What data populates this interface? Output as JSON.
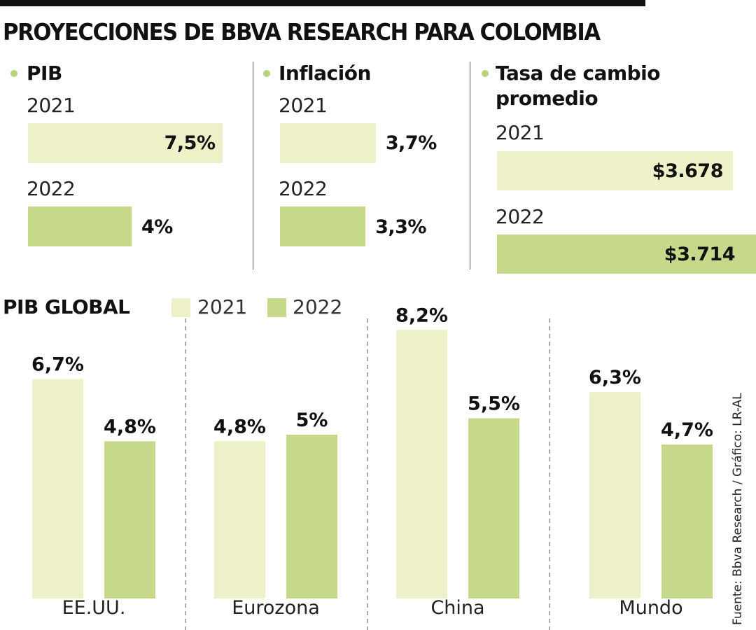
{
  "title": "PROYECCIONES DE BBVA RESEARCH PARA COLOMBIA",
  "colors": {
    "year_2021": "#eef1c8",
    "year_2022": "#c6d98a",
    "bullet": "#b8d27e"
  },
  "colombia": {
    "pib": {
      "title": "PIB",
      "items": [
        {
          "year": "2021",
          "label": "7,5%",
          "value": 7.5
        },
        {
          "year": "2022",
          "label": "4%",
          "value": 4
        }
      ]
    },
    "inflacion": {
      "title": "Inflación",
      "items": [
        {
          "year": "2021",
          "label": "3,7%",
          "value": 3.7
        },
        {
          "year": "2022",
          "label": "3,3%",
          "value": 3.3
        }
      ]
    },
    "tasa": {
      "title_line1": "Tasa de cambio",
      "title_line2": "promedio",
      "items": [
        {
          "year": "2021",
          "label": "$3.678",
          "value": 3678
        },
        {
          "year": "2022",
          "label": "$3.714",
          "value": 3714
        }
      ]
    }
  },
  "chart_data": {
    "type": "bar",
    "title": "PIB GLOBAL",
    "categories": [
      "EE.UU.",
      "Eurozona",
      "China",
      "Mundo"
    ],
    "series": [
      {
        "name": "2021",
        "values": [
          6.7,
          4.8,
          8.2,
          6.3
        ],
        "labels": [
          "6,7%",
          "4,8%",
          "8,2%",
          "6,3%"
        ]
      },
      {
        "name": "2022",
        "values": [
          4.8,
          5,
          5.5,
          4.7
        ],
        "labels": [
          "4,8%",
          "5%",
          "5,5%",
          "4,7%"
        ]
      }
    ],
    "legend": "top",
    "grid": false
  },
  "source": "Fuente: Bbva Research / Gráfico: LR-AL"
}
